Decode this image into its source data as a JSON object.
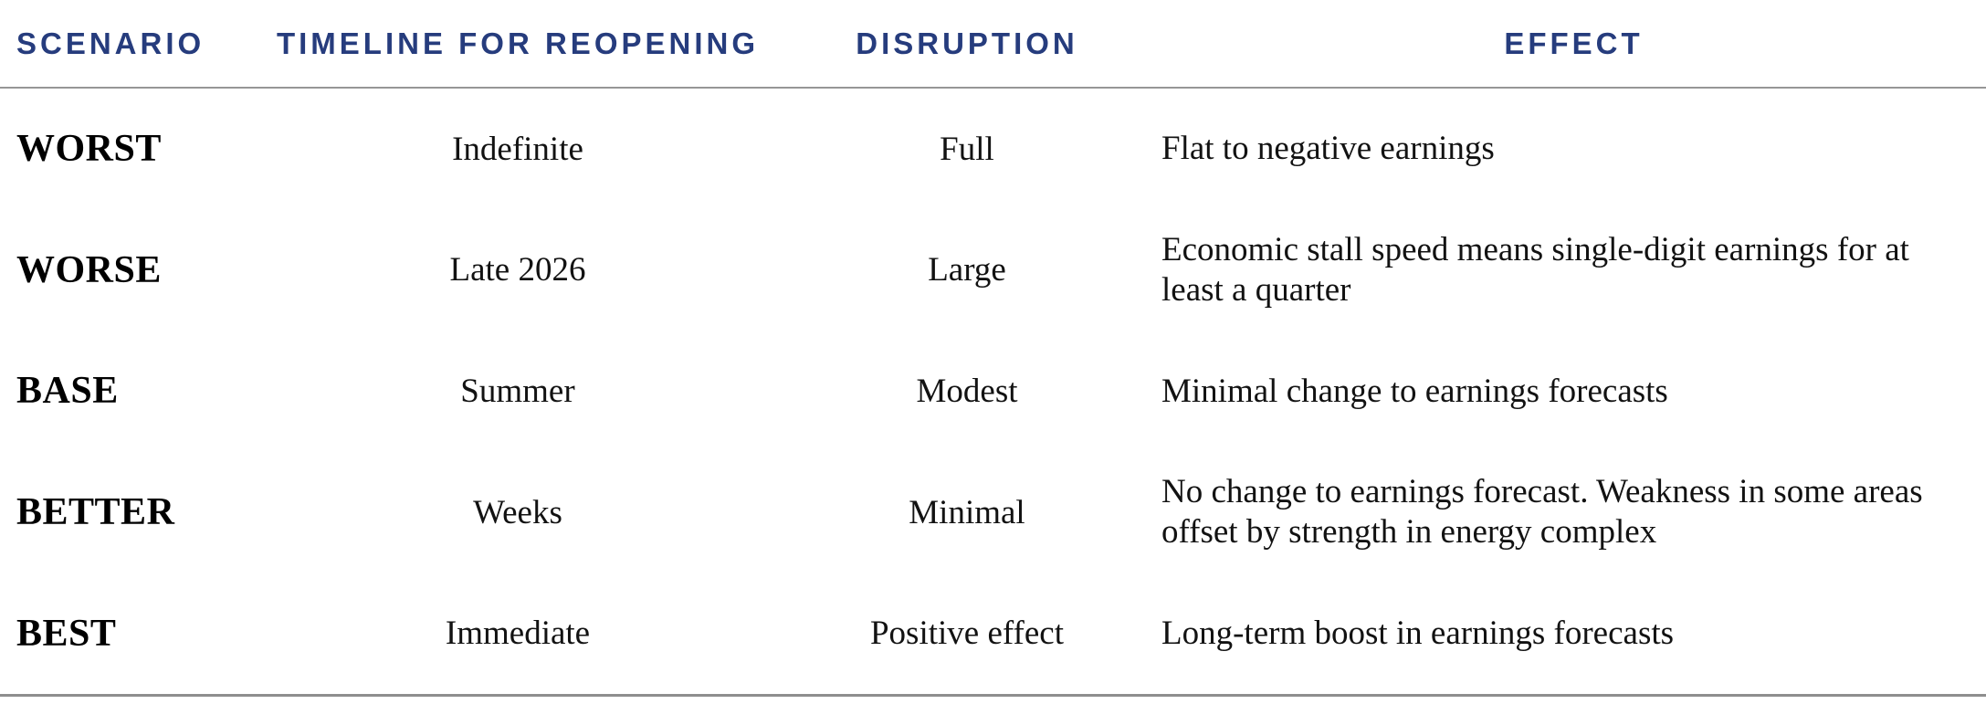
{
  "table": {
    "headers": {
      "scenario": "SCENARIO",
      "timeline": "TIMELINE FOR REOPENING",
      "disruption": "DISRUPTION",
      "effect": "EFFECT"
    }
  },
  "chart_data": {
    "type": "table",
    "columns": [
      "SCENARIO",
      "TIMELINE FOR REOPENING",
      "DISRUPTION",
      "EFFECT"
    ],
    "rows": [
      [
        "WORST",
        "Indefinite",
        "Full",
        "Flat to negative earnings"
      ],
      [
        "WORSE",
        "Late 2026",
        "Large",
        "Economic stall speed means single-digit earnings for at least a quarter"
      ],
      [
        "BASE",
        "Summer",
        "Modest",
        "Minimal change to earnings forecasts"
      ],
      [
        "BETTER",
        "Weeks",
        "Minimal",
        "No change to earnings forecast. Weakness in some areas offset by strength in energy complex"
      ],
      [
        "BEST",
        "Immediate",
        "Positive effect",
        "Long-term boost in earnings forecasts"
      ]
    ]
  },
  "colors": {
    "header_text": "#263c7d",
    "body_text": "#121212",
    "scenario_text": "#000000",
    "rule": "#8e8e8e"
  }
}
